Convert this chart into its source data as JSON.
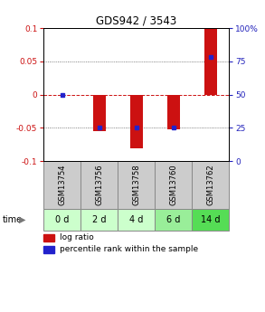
{
  "title": "GDS942 / 3543",
  "samples": [
    "GSM13754",
    "GSM13756",
    "GSM13758",
    "GSM13760",
    "GSM13762"
  ],
  "time_labels": [
    "0 d",
    "2 d",
    "4 d",
    "6 d",
    "14 d"
  ],
  "log_ratios": [
    0.0,
    -0.055,
    -0.08,
    -0.052,
    0.1
  ],
  "percentile_ranks": [
    50,
    25,
    25,
    25,
    78
  ],
  "ylim": [
    -0.1,
    0.1
  ],
  "yticks_left": [
    -0.1,
    -0.05,
    0,
    0.05,
    0.1
  ],
  "yticks_right": [
    0,
    25,
    50,
    75,
    100
  ],
  "bar_width": 0.35,
  "bar_color": "#cc1111",
  "dot_color": "#2222cc",
  "grid_color": "#555555",
  "zero_line_color": "#cc1111",
  "bg_color": "#ffffff",
  "plot_bg": "#ffffff",
  "sample_box_color": "#cccccc",
  "time_box_colors": [
    "#ccffcc",
    "#ccffcc",
    "#ccffcc",
    "#99ee99",
    "#55dd55"
  ],
  "legend_log_ratio": "log ratio",
  "legend_percentile": "percentile rank within the sample",
  "left_tick_color": "#cc1111",
  "right_tick_color": "#2222bb"
}
